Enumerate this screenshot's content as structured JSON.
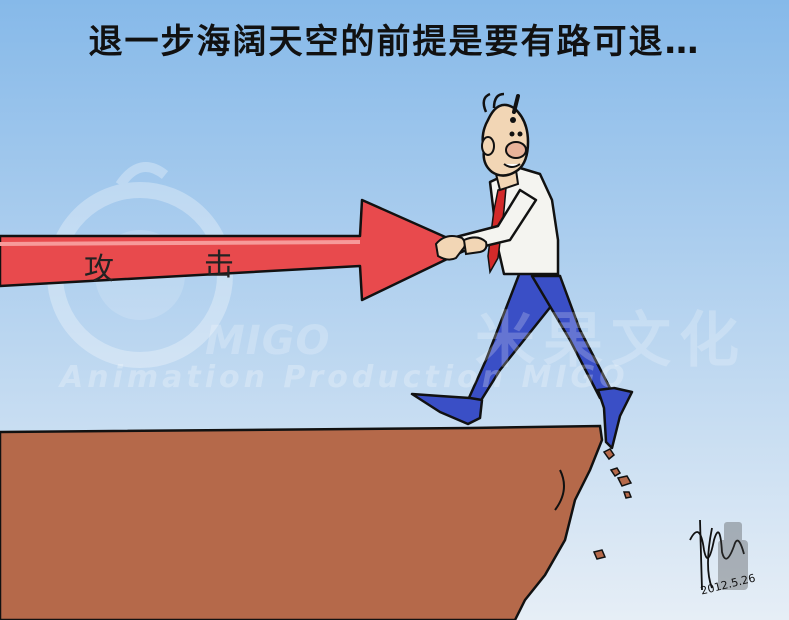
{
  "caption": "退一步海阔天空的前提是要有路可退…",
  "arrow": {
    "label_left": "攻",
    "label_right": "击",
    "color": "#e84a4d"
  },
  "watermark": {
    "letters": "MIGO",
    "chinese": "米果文化",
    "english": "Animation Production MIGO"
  },
  "signature": {
    "date": "2012.5.26"
  },
  "colors": {
    "sky_top": "#86b9e9",
    "sky_bottom": "#e6eef6",
    "cliff": "#b5694a",
    "suit_pants": "#3a4fc6",
    "tie": "#d32a2a"
  }
}
